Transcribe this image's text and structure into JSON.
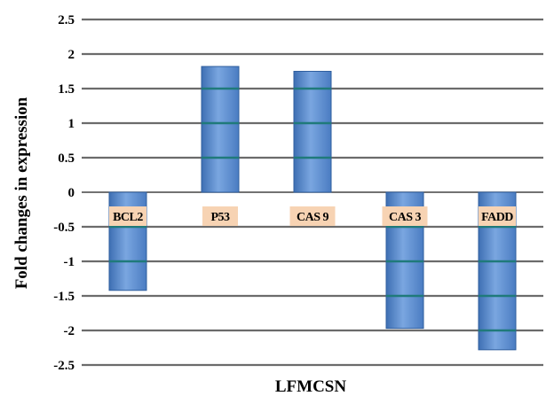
{
  "chart_data": {
    "type": "bar",
    "categories": [
      "BCL2",
      "P53",
      "CAS 9",
      "CAS 3",
      "FADD"
    ],
    "values": [
      -1.42,
      1.82,
      1.75,
      -1.97,
      -2.28
    ],
    "title": "",
    "xlabel": "LFMCSN",
    "ylabel": "Fold changes in expression",
    "ylim": [
      -2.5,
      2.5
    ],
    "yticks": [
      "2.5",
      "2",
      "1.5",
      "1",
      "0.5",
      "0",
      "-0.5",
      "-1",
      "-1.5",
      "-2",
      "-2.5"
    ],
    "grid": true,
    "legend": "none",
    "colors": {
      "bar": "#5b8fd4",
      "bar_dark": "#3e6fb3",
      "bar_light": "#8fb5e8",
      "gridline": "#6b6b6b",
      "label_bg": "#f7d3b3",
      "bar_stripe": "#1f7a7a"
    }
  }
}
